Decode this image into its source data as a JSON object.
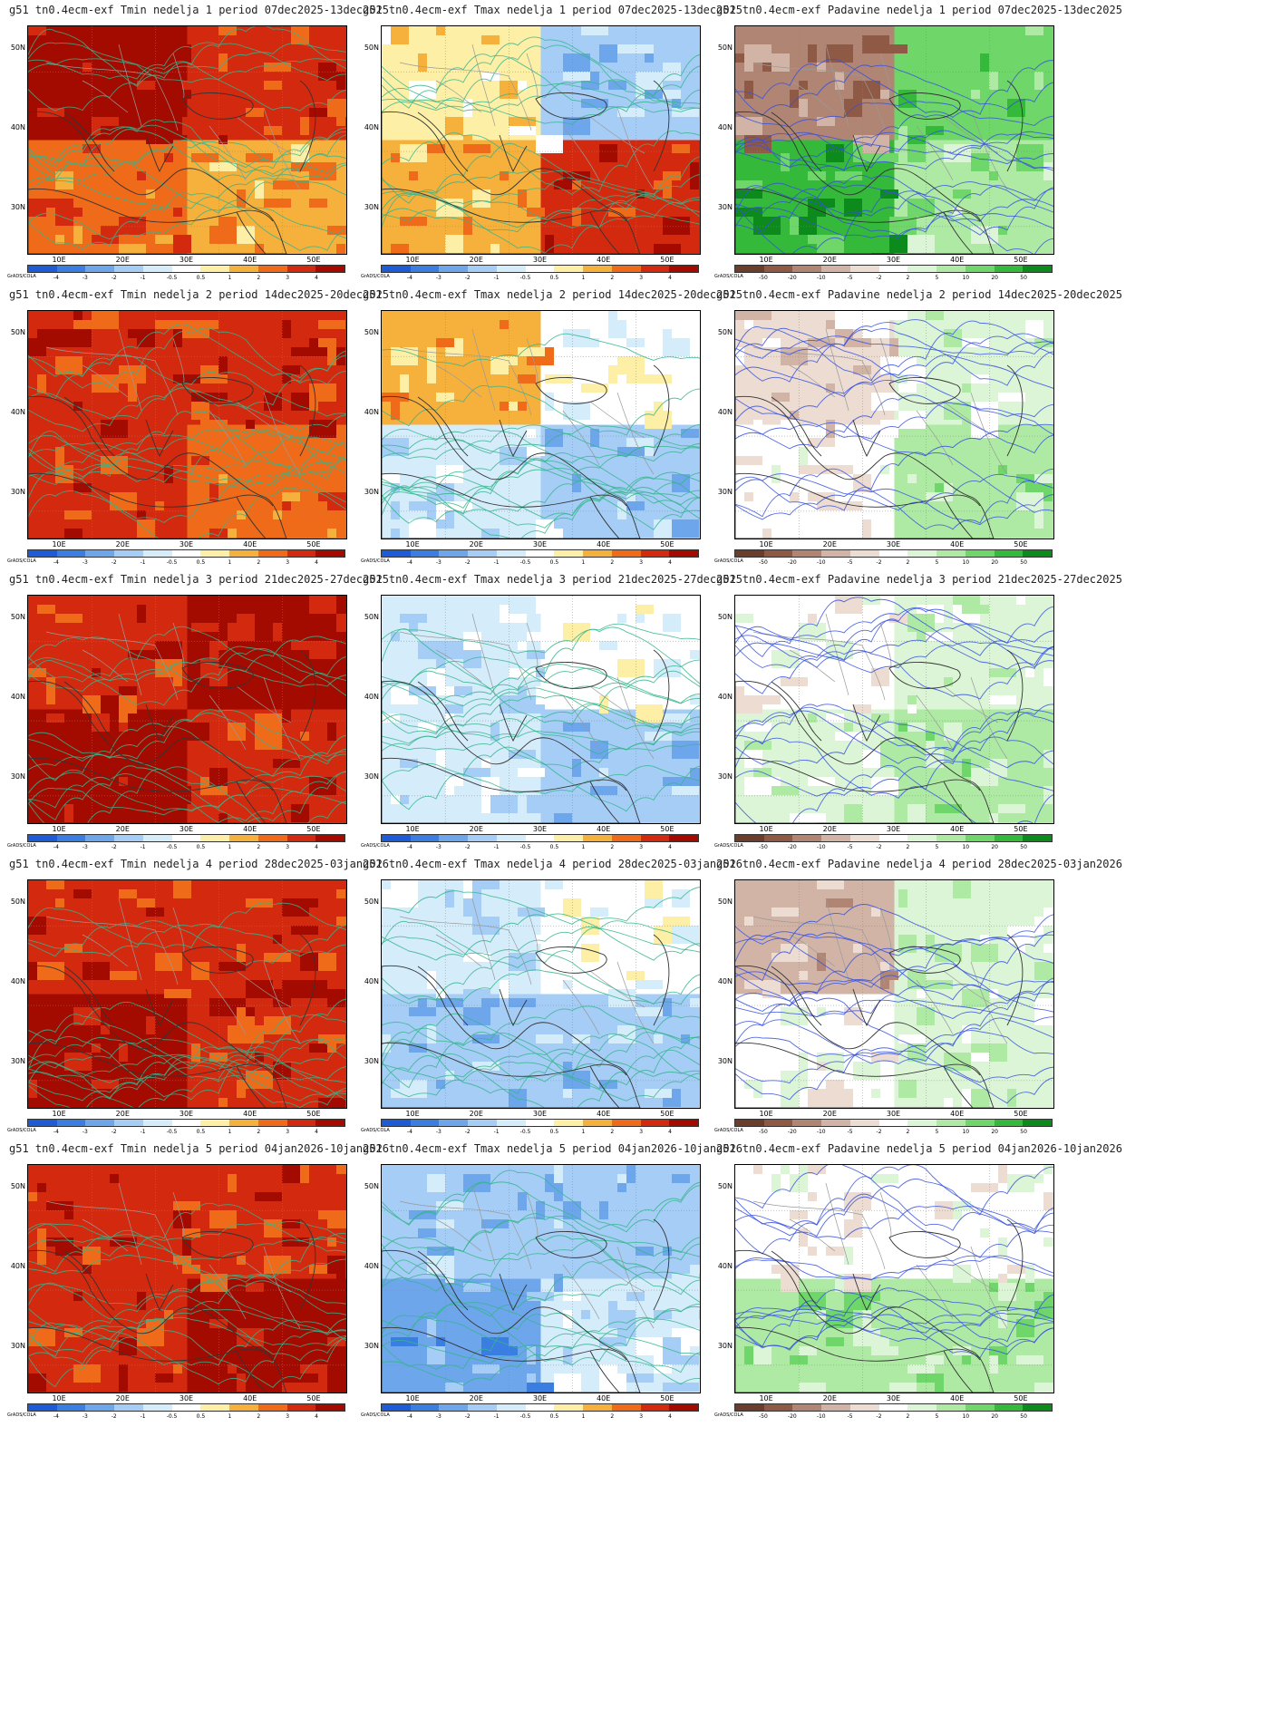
{
  "lat_labels": [
    "50N",
    "40N",
    "30N"
  ],
  "lon_labels": [
    "10E",
    "20E",
    "30E",
    "40E",
    "50E"
  ],
  "grads_label": "GrADS/COLA",
  "temp_scale": {
    "labels": [
      "-4",
      "-3",
      "-2",
      "-1",
      "-0.5",
      "0.5",
      "1",
      "2",
      "3",
      "4"
    ],
    "colors": [
      "#1e5bd6",
      "#3a7ee2",
      "#6ea6ec",
      "#a5cdf5",
      "#d5ecfb",
      "#ffffff",
      "#fdf0a6",
      "#f6b13d",
      "#ef6a19",
      "#d2290f",
      "#a40b00"
    ]
  },
  "precip_scale": {
    "labels": [
      "-50",
      "-20",
      "-10",
      "-5",
      "-2",
      "2",
      "5",
      "10",
      "20",
      "50"
    ],
    "colors": [
      "#6b3d2c",
      "#8e5a46",
      "#b08574",
      "#d1b4a6",
      "#ecdcd2",
      "#ffffff",
      "#dbf5d6",
      "#aeeaa3",
      "#6fd66a",
      "#34b93a",
      "#0d8a1c"
    ]
  },
  "accent": {
    "contour_temp": "#35b58c",
    "contour_precip": "#3550e0",
    "coast": "#333333",
    "border": "#9a9a9a"
  },
  "rows": [
    {
      "week": "1",
      "titles": {
        "tmin": "g51 tn0.4ecm-exf Tmin nedelja 1 period 07dec2025-13dec2025",
        "tmax": "g51 tn0.4ecm-exf Tmax nedelja 1 period 07dec2025-13dec2025",
        "precip": "g51 tn0.4ecm-exf Padavine nedelja 1 period 07dec2025-13dec2025"
      }
    },
    {
      "week": "2",
      "titles": {
        "tmin": "g51 tn0.4ecm-exf Tmin nedelja 2 period 14dec2025-20dec2025",
        "tmax": "g51 tn0.4ecm-exf Tmax nedelja 2 period 14dec2025-20dec2025",
        "precip": "g51 tn0.4ecm-exf Padavine nedelja 2 period 14dec2025-20dec2025"
      }
    },
    {
      "week": "3",
      "titles": {
        "tmin": "g51 tn0.4ecm-exf Tmin nedelja 3 period 21dec2025-27dec2025",
        "tmax": "g51 tn0.4ecm-exf Tmax nedelja 3 period 21dec2025-27dec2025",
        "precip": "g51 tn0.4ecm-exf Padavine nedelja 3 period 21dec2025-27dec2025"
      }
    },
    {
      "week": "4",
      "titles": {
        "tmin": "g51 tn0.4ecm-exf Tmin nedelja 4 period 28dec2025-03jan2026",
        "tmax": "g51 tn0.4ecm-exf Tmax nedelja 4 period 28dec2025-03jan2026",
        "precip": "g51 tn0.4ecm-exf Padavine nedelja 4 period 28dec2025-03jan2026"
      }
    },
    {
      "week": "5",
      "titles": {
        "tmin": "g51 tn0.4ecm-exf Tmin nedelja 5 period 04jan2026-10jan2026",
        "tmax": "g51 tn0.4ecm-exf Tmax nedelja 5 period 04jan2026-10jan2026",
        "precip": "g51 tn0.4ecm-exf Padavine nedelja 5 period 04jan2026-10jan2026"
      }
    }
  ],
  "field_levels": {
    "tmin": [
      [
        10,
        9,
        8,
        7
      ],
      [
        9,
        9,
        9,
        8
      ],
      [
        9,
        10,
        10,
        9
      ],
      [
        9,
        9,
        10,
        9
      ],
      [
        9,
        9,
        9,
        10
      ]
    ],
    "tmax": [
      [
        6,
        3,
        7,
        9
      ],
      [
        7,
        5,
        4,
        3
      ],
      [
        4,
        5,
        4,
        3
      ],
      [
        4,
        5,
        3,
        3
      ],
      [
        3,
        3,
        2,
        4
      ]
    ],
    "precip": [
      [
        2,
        8,
        9,
        7
      ],
      [
        4,
        6,
        5,
        7
      ],
      [
        5,
        6,
        6,
        7
      ],
      [
        3,
        6,
        5,
        6
      ],
      [
        5,
        5,
        7,
        7
      ]
    ]
  }
}
